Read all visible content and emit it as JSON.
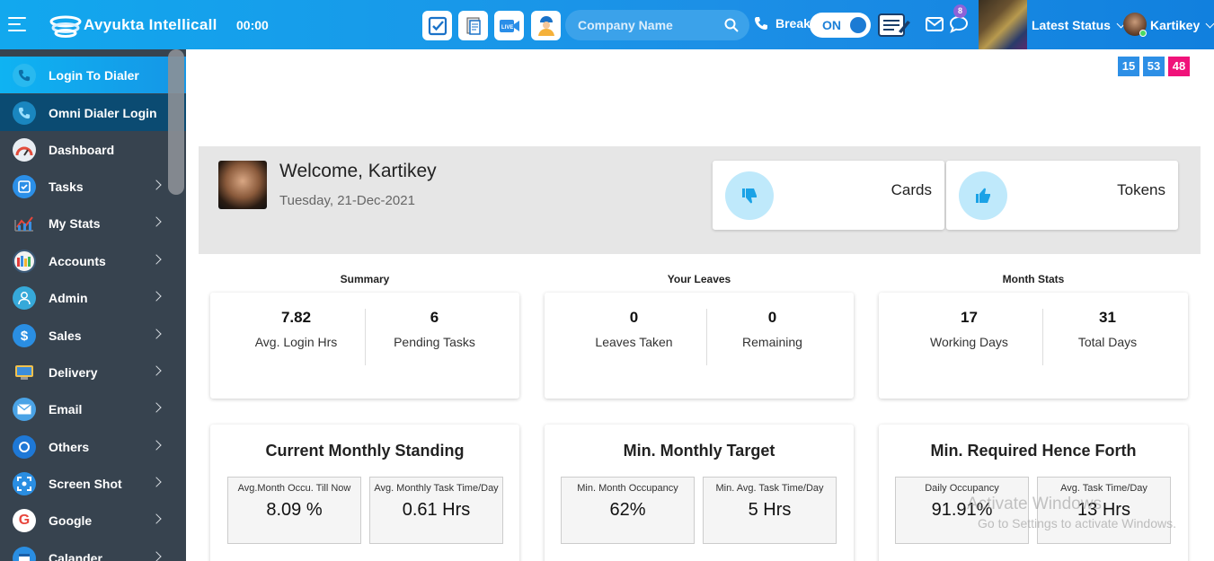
{
  "header": {
    "logo_text": "Avyukta Intellicall",
    "timer": "00:00",
    "search_placeholder": "Company Name",
    "break_label": "Break",
    "toggle_label": "ON",
    "chat_badge": "8",
    "latest_status": "Latest Status",
    "user_name": "Kartikey",
    "quick_icons": [
      "task-check-icon",
      "notes-icon",
      "live-video-icon",
      "worker-icon"
    ]
  },
  "sidebar": {
    "items": [
      {
        "label": "Login To Dialer",
        "icon": "phone-icon",
        "arrow": false
      },
      {
        "label": "Omni Dialer Login",
        "icon": "phone-icon",
        "arrow": false
      },
      {
        "label": "Dashboard",
        "icon": "speedometer-icon",
        "arrow": false
      },
      {
        "label": "Tasks",
        "icon": "checkbox-icon",
        "arrow": true
      },
      {
        "label": "My Stats",
        "icon": "stats-chart-icon",
        "arrow": true
      },
      {
        "label": "Accounts",
        "icon": "accounts-icon",
        "arrow": true
      },
      {
        "label": "Admin",
        "icon": "admin-user-icon",
        "arrow": true
      },
      {
        "label": "Sales",
        "icon": "dollar-icon",
        "arrow": true
      },
      {
        "label": "Delivery",
        "icon": "delivery-icon",
        "arrow": true
      },
      {
        "label": "Email",
        "icon": "email-icon",
        "arrow": true
      },
      {
        "label": "Others",
        "icon": "others-icon",
        "arrow": true
      },
      {
        "label": "Screen Shot",
        "icon": "screenshot-icon",
        "arrow": true
      },
      {
        "label": "Google",
        "icon": "google-icon",
        "arrow": true
      },
      {
        "label": "Calander",
        "icon": "calendar-icon",
        "arrow": true
      }
    ]
  },
  "counters": [
    {
      "value": "15",
      "color": "#2d8fe6"
    },
    {
      "value": "53",
      "color": "#2d8fe6"
    },
    {
      "value": "48",
      "color": "#f0127a"
    }
  ],
  "welcome": {
    "title": "Welcome, Kartikey",
    "date": "Tuesday, 21-Dec-2021",
    "cards_label": "Cards",
    "tokens_label": "Tokens"
  },
  "summary": {
    "heading": "Summary",
    "avg_login": "7.82",
    "avg_login_label": "Avg. Login Hrs",
    "pending": "6",
    "pending_label": "Pending Tasks"
  },
  "leaves": {
    "heading": "Your Leaves",
    "taken": "0",
    "taken_label": "Leaves Taken",
    "remaining": "0",
    "remaining_label": "Remaining"
  },
  "month": {
    "heading": "Month Stats",
    "working": "17",
    "working_label": "Working Days",
    "total": "31",
    "total_label": "Total Days"
  },
  "standing": {
    "title": "Current Monthly Standing",
    "a_label": "Avg.Month Occu. Till Now",
    "a_value": "8.09 %",
    "b_label": "Avg. Monthly Task Time/Day",
    "b_value": "0.61 Hrs"
  },
  "target": {
    "title": "Min. Monthly Target",
    "a_label": "Min. Month Occupancy",
    "a_value": "62%",
    "b_label": "Min. Avg. Task Time/Day",
    "b_value": "5 Hrs"
  },
  "required": {
    "title": "Min. Required Hence Forth",
    "a_label": "Daily Occupancy",
    "a_value": "91.91%",
    "b_label": "Avg. Task Time/Day",
    "b_value": "13 Hrs"
  },
  "watermark": {
    "line1": "Activate Windows",
    "line2": "Go to Settings to activate Windows."
  }
}
